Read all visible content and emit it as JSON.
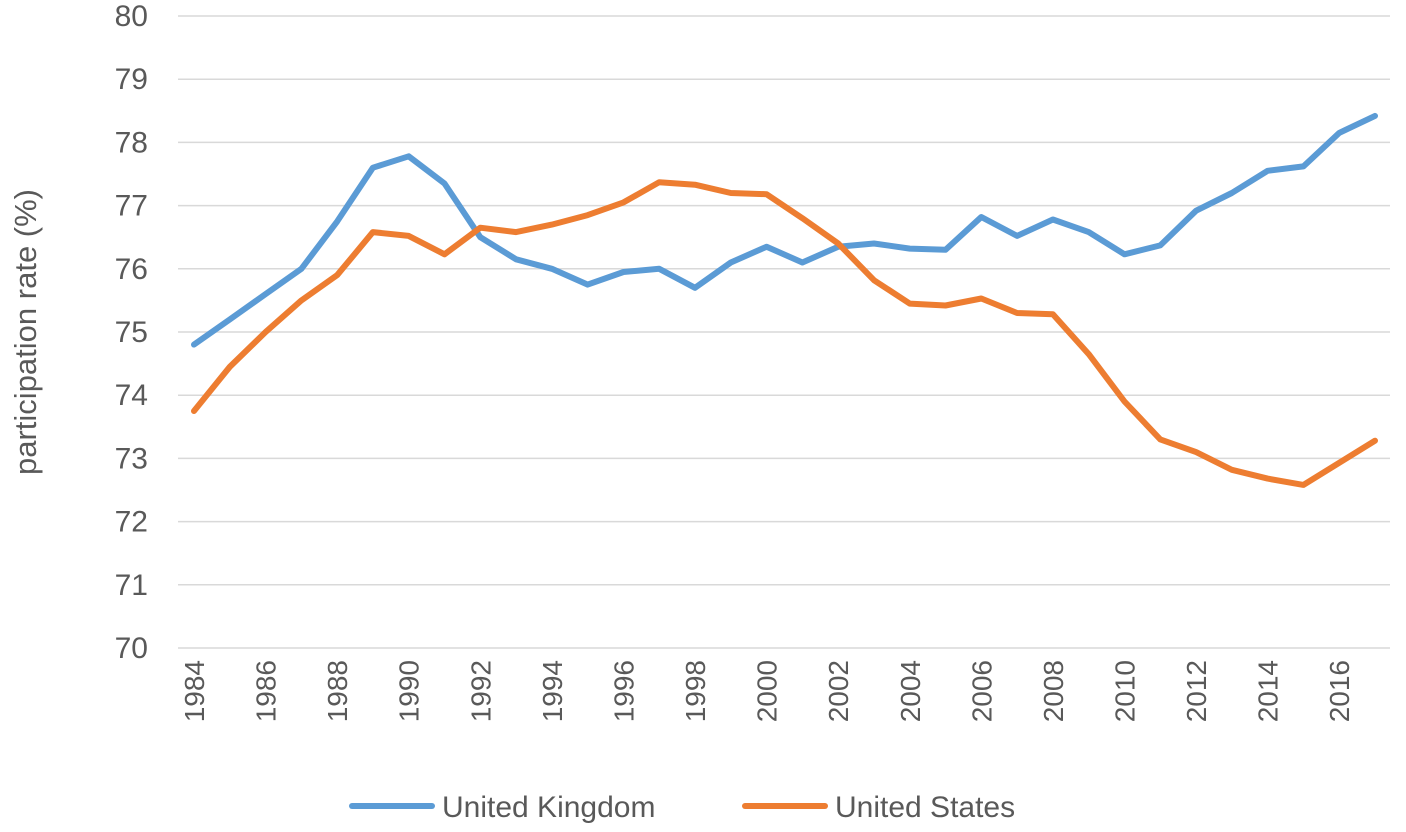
{
  "chart_data": {
    "type": "line",
    "title": "",
    "xlabel": "",
    "ylabel": "participation rate (%)",
    "ylim": [
      70,
      80
    ],
    "yticks": [
      70,
      71,
      72,
      73,
      74,
      75,
      76,
      77,
      78,
      79,
      80
    ],
    "xlim": [
      1984,
      2017
    ],
    "xticks": [
      1984,
      1986,
      1988,
      1990,
      1992,
      1994,
      1996,
      1998,
      2000,
      2002,
      2004,
      2006,
      2008,
      2010,
      2012,
      2014,
      2016
    ],
    "grid": true,
    "legend_position": "bottom",
    "x": [
      1984,
      1985,
      1986,
      1987,
      1988,
      1989,
      1990,
      1991,
      1992,
      1993,
      1994,
      1995,
      1996,
      1997,
      1998,
      1999,
      2000,
      2001,
      2002,
      2003,
      2004,
      2005,
      2006,
      2007,
      2008,
      2009,
      2010,
      2011,
      2012,
      2013,
      2014,
      2015,
      2016,
      2017
    ],
    "series": [
      {
        "name": "United Kingdom",
        "color": "#5b9bd5",
        "values": [
          74.8,
          75.2,
          75.6,
          76.0,
          76.75,
          77.6,
          77.78,
          77.35,
          76.5,
          76.15,
          76.0,
          75.75,
          75.95,
          76.0,
          75.7,
          76.1,
          76.35,
          76.1,
          76.35,
          76.4,
          76.32,
          76.3,
          76.82,
          76.52,
          76.78,
          76.58,
          76.23,
          76.37,
          76.92,
          77.2,
          77.55,
          77.62,
          78.15,
          78.42
        ]
      },
      {
        "name": "United States",
        "color": "#ed7d31",
        "values": [
          73.75,
          74.45,
          75.0,
          75.5,
          75.9,
          76.58,
          76.52,
          76.23,
          76.65,
          76.58,
          76.7,
          76.85,
          77.05,
          77.37,
          77.33,
          77.2,
          77.18,
          76.8,
          76.4,
          75.82,
          75.45,
          75.42,
          75.53,
          75.3,
          75.28,
          74.65,
          73.9,
          73.3,
          73.1,
          72.82,
          72.68,
          72.58,
          72.93,
          73.28
        ]
      }
    ]
  }
}
